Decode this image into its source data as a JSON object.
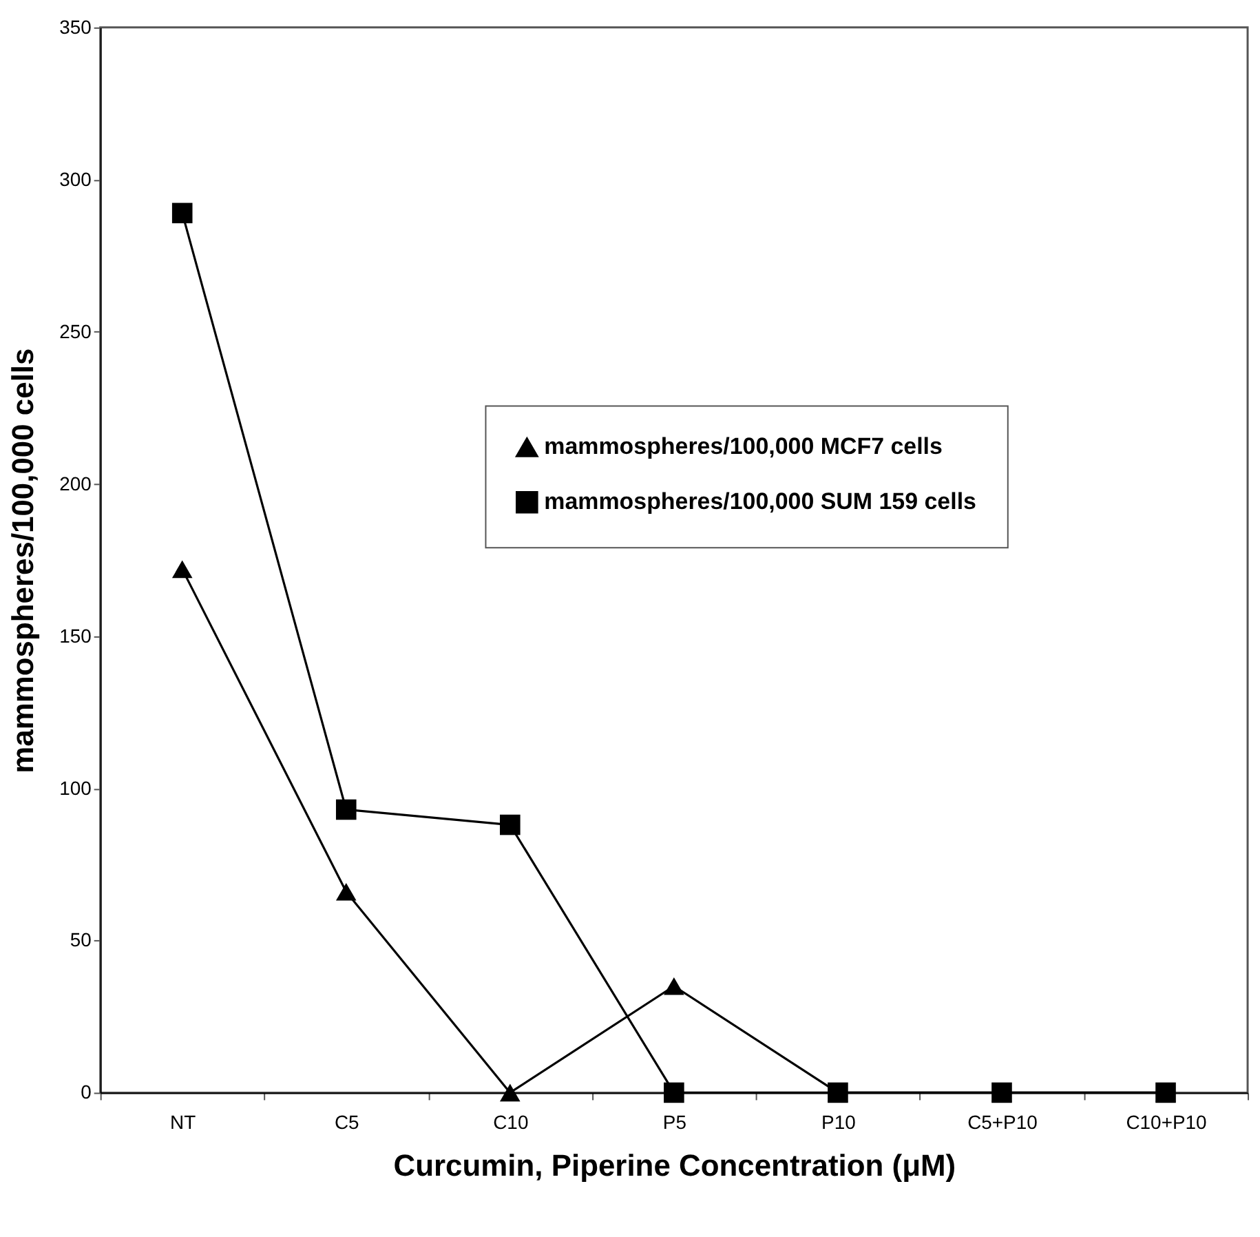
{
  "chart_data": {
    "type": "line",
    "xlabel": "Curcumin, Piperine Concentration (μM)",
    "ylabel": "mammospheres/100,000 cells",
    "categories": [
      "NT",
      "C5",
      "C10",
      "P5",
      "P10",
      "C5+P10",
      "C10+P10"
    ],
    "series": [
      {
        "name": "mammospheres/100,000 MCF7 cells",
        "color": "#000000",
        "marker": "triangle",
        "values": [
          172,
          66,
          0,
          35,
          0,
          0,
          0
        ]
      },
      {
        "name": "mammospheres/100,000 SUM 159 cells",
        "color": "#000000",
        "marker": "square",
        "values": [
          289,
          93,
          88,
          0,
          0,
          0,
          0
        ]
      }
    ],
    "ylim": [
      0,
      350
    ],
    "yticks": [
      0,
      50,
      100,
      150,
      200,
      250,
      300,
      350
    ],
    "grid": false,
    "legend": "right",
    "line_style": "solid"
  }
}
